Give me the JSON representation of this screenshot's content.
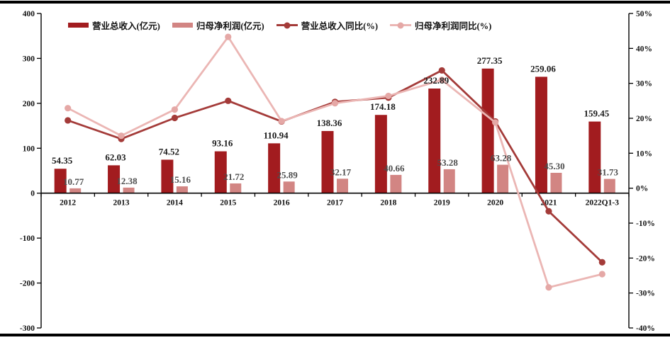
{
  "chart_data": {
    "type": "bar+line",
    "title": "",
    "categories": [
      "2012",
      "2013",
      "2014",
      "2015",
      "2016",
      "2017",
      "2018",
      "2019",
      "2020",
      "2021",
      "2022Q1-3"
    ],
    "series": [
      {
        "key": "revenue",
        "name": "营业总收入(亿元)",
        "kind": "bar",
        "axis": "left",
        "color": "#A21C1F",
        "label_color": "#1a1a1a",
        "values": [
          54.35,
          62.03,
          74.52,
          93.16,
          110.94,
          138.36,
          174.18,
          232.89,
          277.35,
          259.06,
          159.45
        ]
      },
      {
        "key": "profit",
        "name": "归母净利润(亿元)",
        "kind": "bar",
        "axis": "left",
        "color": "#D28583",
        "label_color": "#4d4d4d",
        "values": [
          10.77,
          12.38,
          15.16,
          21.72,
          25.89,
          32.17,
          40.66,
          53.28,
          63.28,
          45.3,
          31.73
        ]
      },
      {
        "key": "revenue-yoy",
        "name": "营业总收入同比(%)",
        "kind": "line",
        "axis": "right",
        "color": "#A43B39",
        "marker": "#A43B39",
        "values": [
          19.4,
          14.1,
          20.1,
          25.0,
          19.1,
          24.7,
          25.9,
          33.7,
          19.1,
          -6.6,
          -21.2
        ]
      },
      {
        "key": "profit-yoy",
        "name": "归母净利润同比(%)",
        "kind": "line",
        "axis": "right",
        "color": "#EBB6B4",
        "marker": "#E5A8A6",
        "values": [
          22.9,
          15.0,
          22.5,
          43.3,
          19.2,
          24.3,
          26.4,
          31.0,
          18.8,
          -28.4,
          -24.6
        ]
      }
    ],
    "left_axis": {
      "max": 400,
      "min": -300,
      "step": 100,
      "labels": [
        "400",
        "300",
        "200",
        "100",
        "0",
        "-100",
        "-200",
        "-300"
      ]
    },
    "right_axis": {
      "max": 50,
      "min": -40,
      "step": 10,
      "labels": [
        "50%",
        "40%",
        "30%",
        "20%",
        "10%",
        "0%",
        "-10%",
        "-20%",
        "-30%",
        "-40%"
      ]
    },
    "legend_position": "top",
    "grid": false,
    "axis_color": "#000000",
    "value_label_decimals": 2
  }
}
